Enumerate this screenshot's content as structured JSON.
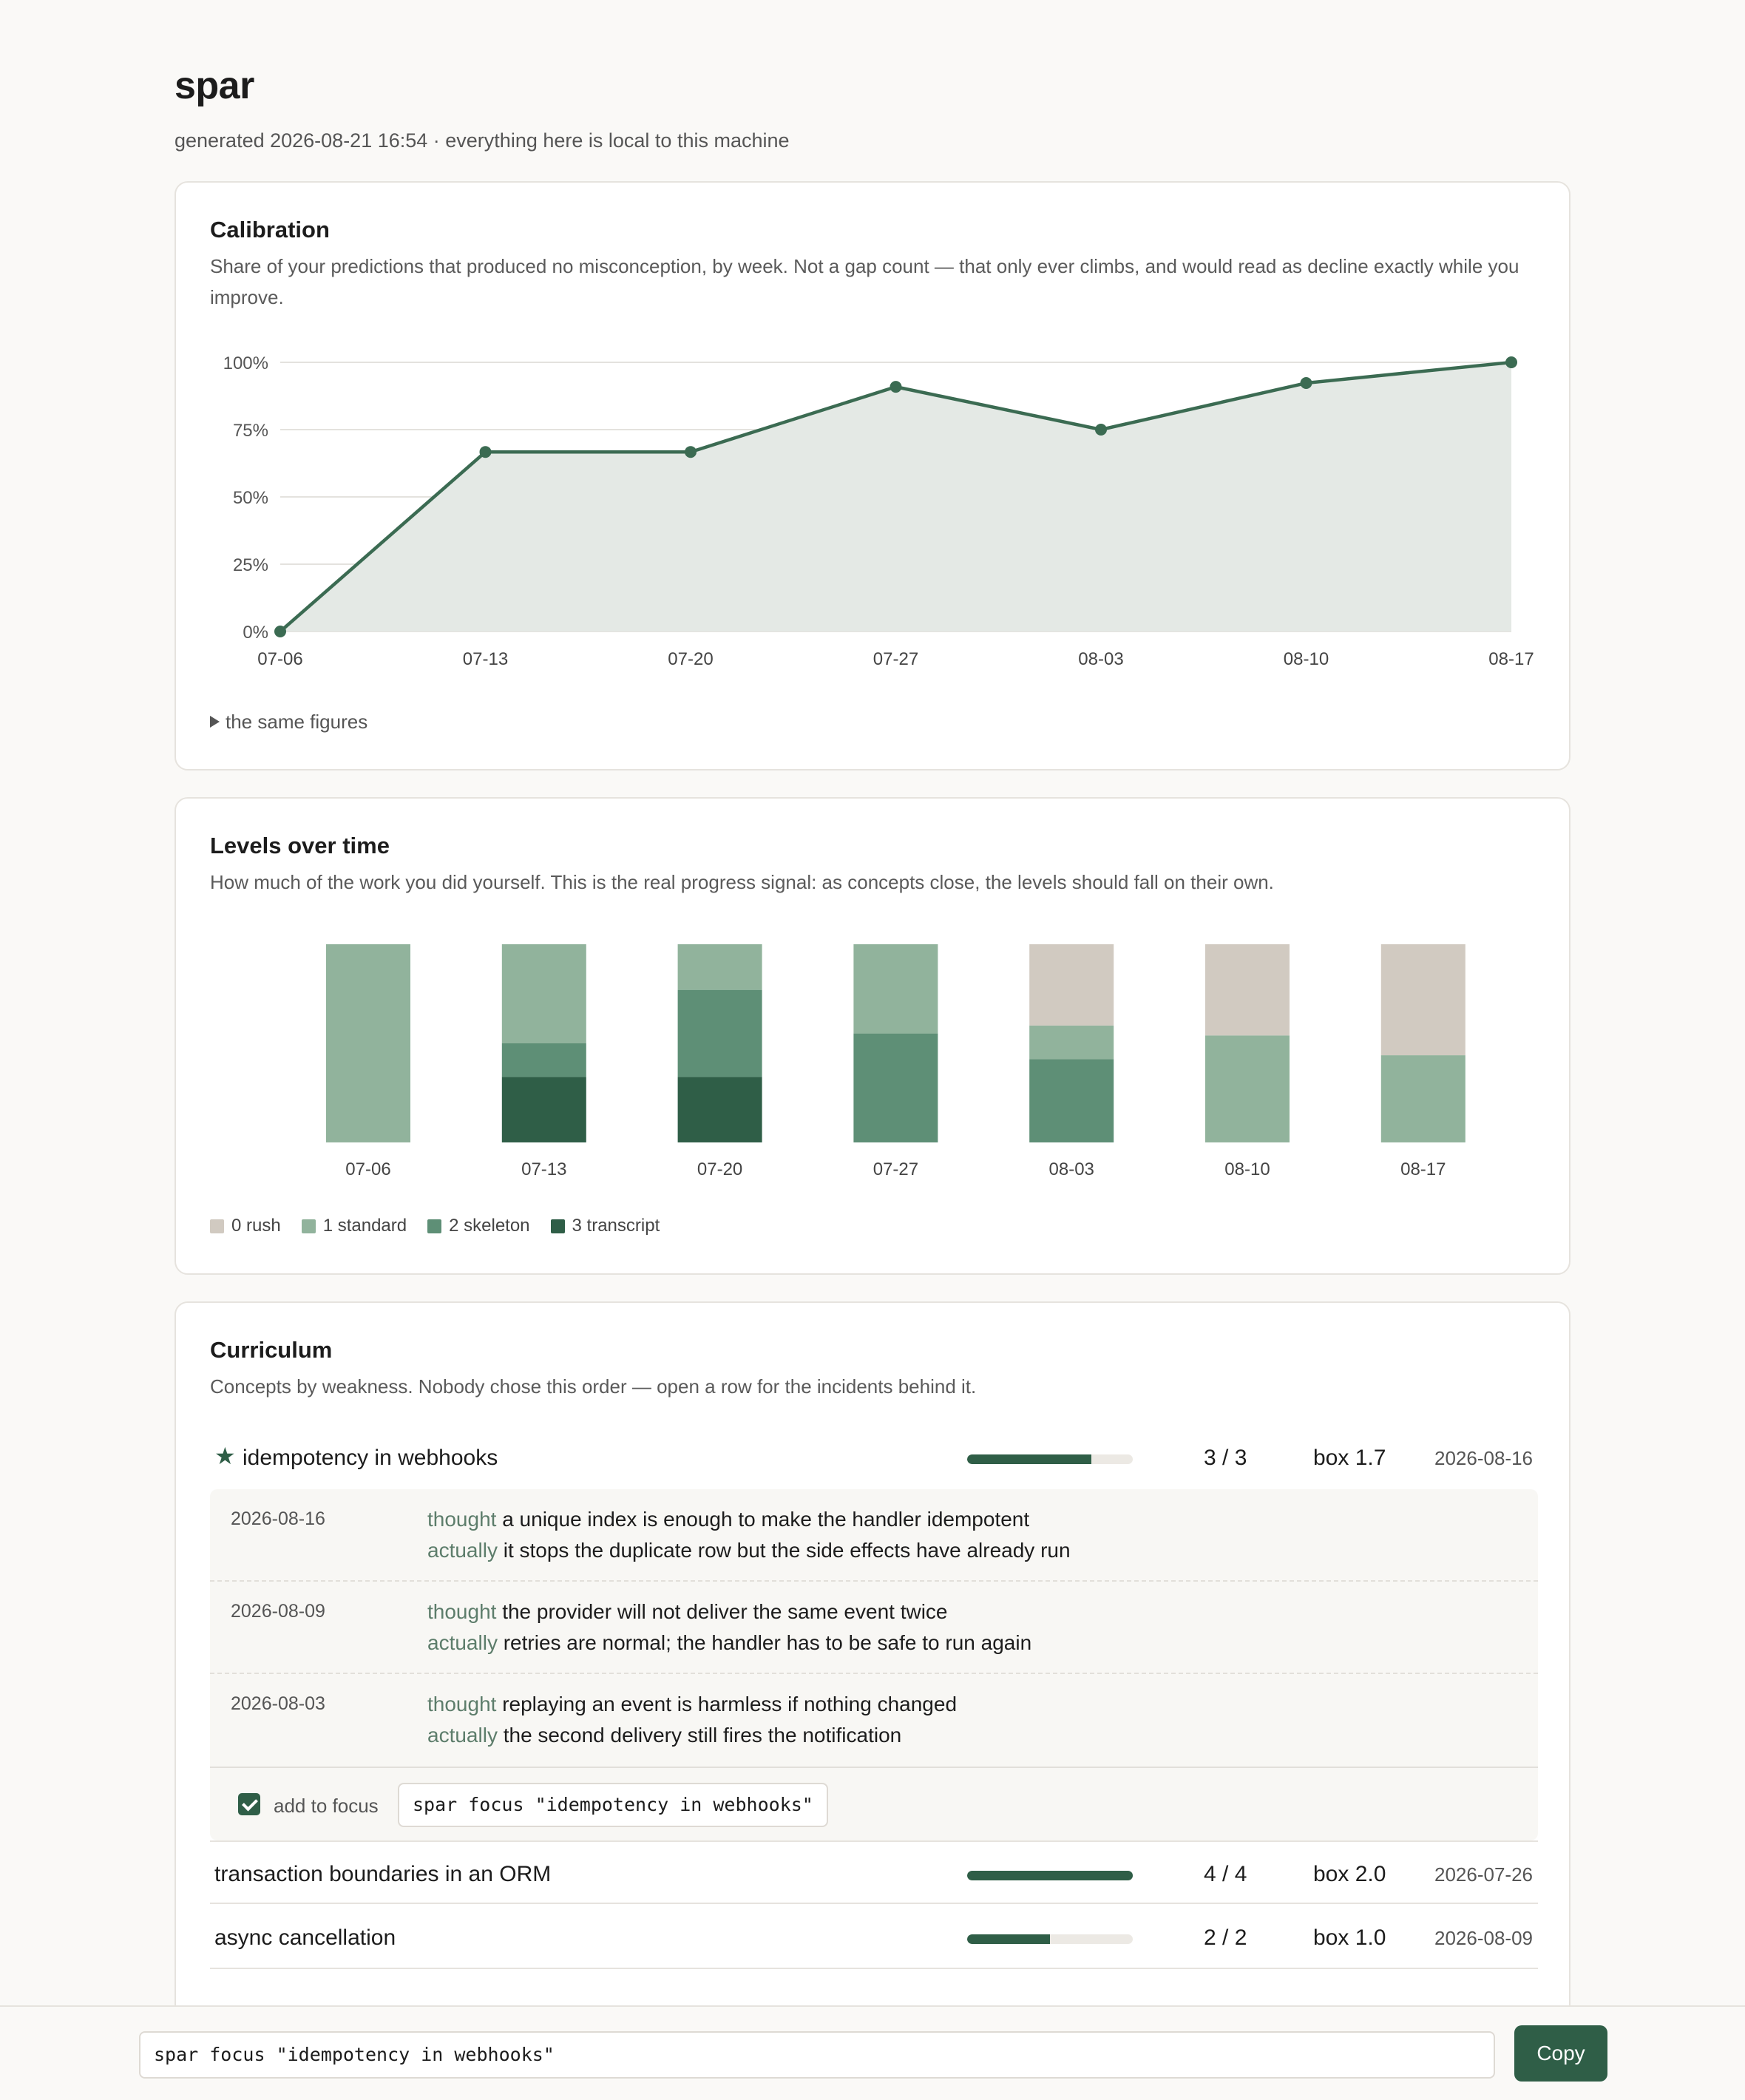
{
  "header": {
    "title": "spar",
    "subtitle": "generated 2026-08-21 16:54 · everything here is local to this machine"
  },
  "calibration": {
    "title": "Calibration",
    "description": "Share of your predictions that produced no misconception, by week. Not a gap count — that only ever climbs, and would read as decline exactly while you improve.",
    "disclosure_label": "the same figures"
  },
  "levels": {
    "title": "Levels over time",
    "description": "How much of the work you did yourself. This is the real progress signal: as concepts close, the levels should fall on their own.",
    "legend": [
      {
        "label": "0 rush",
        "color": "#d1cac1"
      },
      {
        "label": "1 standard",
        "color": "#91b39c"
      },
      {
        "label": "2 skeleton",
        "color": "#5e8f76"
      },
      {
        "label": "3 transcript",
        "color": "#2f5e47"
      }
    ]
  },
  "chart_data": [
    {
      "type": "area",
      "title": "Calibration",
      "x": [
        "07-06",
        "07-13",
        "07-20",
        "07-27",
        "08-03",
        "08-10",
        "08-17"
      ],
      "series": [
        {
          "values": [
            0,
            66.7,
            66.7,
            90.9,
            75,
            92.3,
            100
          ]
        }
      ],
      "ylim": [
        0,
        100
      ],
      "yticks": [
        "0%",
        "25%",
        "50%",
        "75%",
        "100%"
      ],
      "ytick_values": [
        0,
        25,
        50,
        75,
        100
      ],
      "grid": true,
      "color": "#3b6b52",
      "fill_color": "#e4e9e5"
    },
    {
      "type": "bar",
      "stacked": true,
      "normalized": true,
      "title": "Levels over time",
      "categories": [
        "07-06",
        "07-13",
        "07-20",
        "07-27",
        "08-03",
        "08-10",
        "08-17"
      ],
      "series": [
        {
          "name": "3 transcript",
          "values": [
            0,
            0.33,
            0.33,
            0,
            0,
            0,
            0
          ]
        },
        {
          "name": "2 skeleton",
          "values": [
            0,
            0.17,
            0.44,
            0.55,
            0.42,
            0,
            0
          ]
        },
        {
          "name": "1 standard",
          "values": [
            1.0,
            0.5,
            0.23,
            0.45,
            0.17,
            0.54,
            0.44
          ]
        },
        {
          "name": "0 rush",
          "values": [
            0,
            0,
            0,
            0,
            0.41,
            0.46,
            0.56
          ]
        }
      ],
      "legend_position": "bottom-left"
    }
  ],
  "curriculum": {
    "title": "Curriculum",
    "description": "Concepts by weakness. Nobody chose this order — open a row for the incidents behind it.",
    "rows": [
      {
        "name": "idempotency in webhooks",
        "starred": true,
        "progress": 0.75,
        "count": "3 / 3",
        "box": "box 1.7",
        "date": "2026-08-16"
      },
      {
        "name": "transaction boundaries in an ORM",
        "starred": false,
        "progress": 1.0,
        "count": "4 / 4",
        "box": "box 2.0",
        "date": "2026-07-26"
      },
      {
        "name": "async cancellation",
        "starred": false,
        "progress": 0.5,
        "count": "2 / 2",
        "box": "box 1.0",
        "date": "2026-08-09"
      }
    ],
    "incidents": [
      {
        "date": "2026-08-16",
        "thought_label": "thought",
        "thought": "a unique index is enough to make the handler idempotent",
        "actually_label": "actually",
        "actually": "it stops the duplicate row but the side effects have already run"
      },
      {
        "date": "2026-08-09",
        "thought_label": "thought",
        "thought": "the provider will not deliver the same event twice",
        "actually_label": "actually",
        "actually": "retries are normal; the handler has to be safe to run again"
      },
      {
        "date": "2026-08-03",
        "thought_label": "thought",
        "thought": "replaying an event is harmless if nothing changed",
        "actually_label": "actually",
        "actually": "the second delivery still fires the notification"
      }
    ],
    "focus": {
      "checked": true,
      "label": "add to focus",
      "command": "spar focus \"idempotency in webhooks\""
    }
  },
  "bottom_bar": {
    "command": "spar focus \"idempotency in webhooks\"",
    "copy_label": "Copy"
  }
}
